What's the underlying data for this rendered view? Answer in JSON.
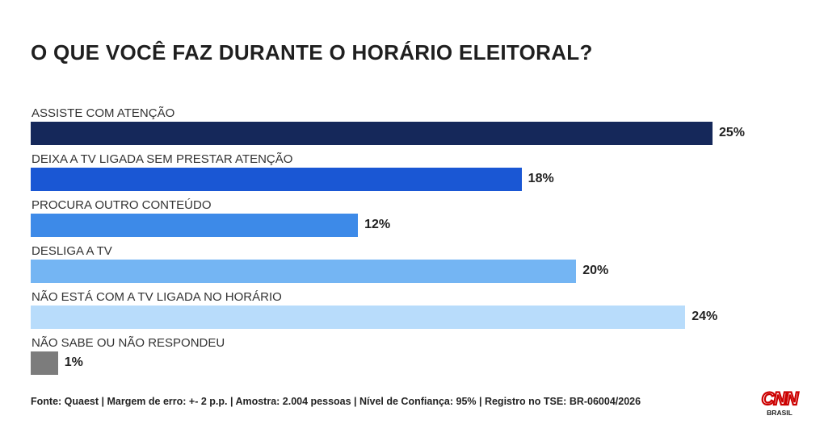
{
  "chart_data": {
    "type": "bar",
    "orientation": "horizontal",
    "title": "O QUE VOCÊ FAZ DURANTE O HORÁRIO ELEITORAL?",
    "categories": [
      "ASSISTE COM ATENÇÃO",
      "DEIXA A TV LIGADA SEM PRESTAR ATENÇÃO",
      "PROCURA OUTRO CONTEÚDO",
      "DESLIGA A TV",
      "NÃO ESTÁ COM A TV LIGADA NO HORÁRIO",
      "NÃO SABE OU NÃO RESPONDEU"
    ],
    "values": [
      25,
      18,
      12,
      20,
      24,
      1
    ],
    "value_labels": [
      "25%",
      "18%",
      "12%",
      "20%",
      "24%",
      "1%"
    ],
    "colors": [
      "#15285a",
      "#1a57d4",
      "#3d8ae8",
      "#74b5f3",
      "#b8dcfb",
      "#7c7c7c"
    ],
    "unit": "%",
    "xlim": [
      0,
      25
    ],
    "grid": false,
    "legend": "none"
  },
  "footer": "Fonte: Quaest | Margem de erro: +- 2 p.p. | Amostra: 2.004 pessoas | Nível de Confiança: 95% | Registro no TSE: BR-06004/2026",
  "logo": {
    "brand": "CNN",
    "subtitle": "BRASIL",
    "color": "#cc0000"
  }
}
